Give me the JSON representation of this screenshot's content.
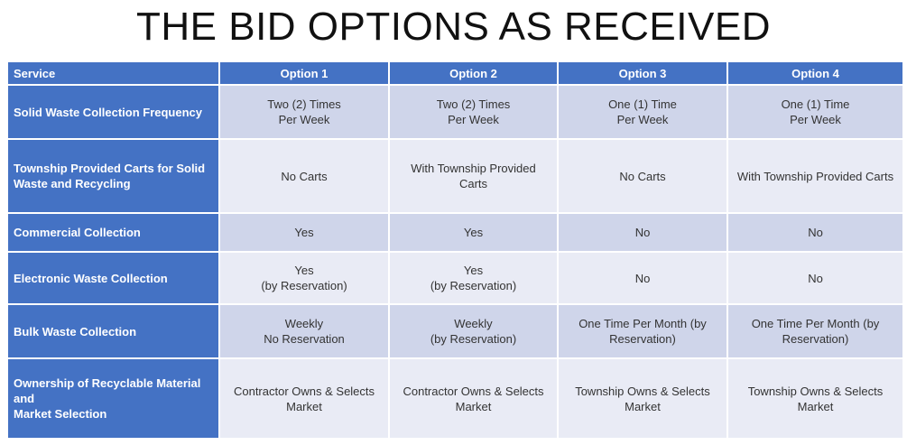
{
  "title": "THE BID OPTIONS AS RECEIVED",
  "table": {
    "header": [
      "Service",
      "Option 1",
      "Option 2",
      "Option 3",
      "Option 4"
    ],
    "rows": [
      [
        [
          "Solid Waste Collection Frequency"
        ],
        [
          "Two (2) Times",
          "Per Week"
        ],
        [
          "Two (2) Times",
          "Per Week"
        ],
        [
          "One (1) Time",
          "Per Week"
        ],
        [
          "One (1) Time",
          "Per Week"
        ]
      ],
      [
        [
          "Township Provided Carts for Solid",
          "Waste and Recycling"
        ],
        [
          "No Carts"
        ],
        [
          "With Township Provided Carts"
        ],
        [
          "No Carts"
        ],
        [
          "With Township Provided Carts"
        ]
      ],
      [
        [
          "Commercial Collection"
        ],
        [
          "Yes"
        ],
        [
          "Yes"
        ],
        [
          "No"
        ],
        [
          "No"
        ]
      ],
      [
        [
          "Electronic Waste Collection"
        ],
        [
          "Yes",
          "(by Reservation)"
        ],
        [
          "Yes",
          "(by Reservation)"
        ],
        [
          "No"
        ],
        [
          "No"
        ]
      ],
      [
        [
          "Bulk Waste Collection"
        ],
        [
          "Weekly",
          "No Reservation"
        ],
        [
          "Weekly",
          "(by Reservation)"
        ],
        [
          "One Time Per Month (by",
          "Reservation)"
        ],
        [
          "One Time Per Month (by",
          "Reservation)"
        ]
      ],
      [
        [
          "Ownership of Recyclable Material and",
          "Market Selection"
        ],
        [
          "Contractor Owns & Selects",
          "Market"
        ],
        [
          "Contractor Owns & Selects",
          "Market"
        ],
        [
          "Township Owns & Selects",
          "Market"
        ],
        [
          "Township Owns & Selects",
          "Market"
        ]
      ]
    ]
  }
}
